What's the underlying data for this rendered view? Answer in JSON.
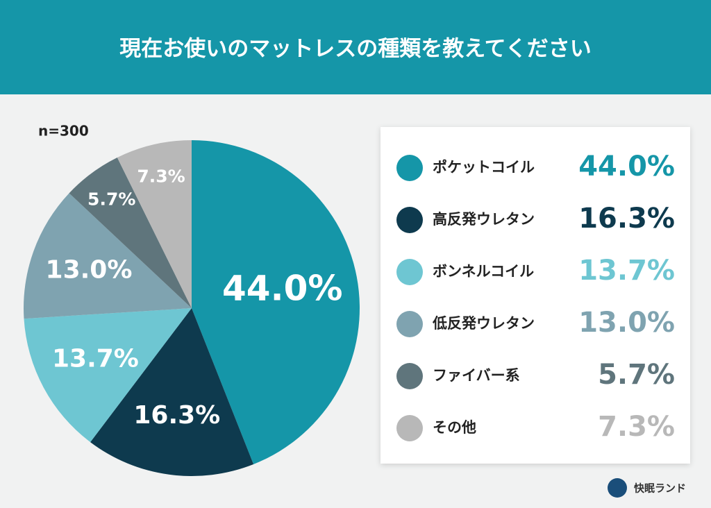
{
  "chart_data": {
    "type": "pie",
    "title": "現在お使いのマットレスの種類を教えてください",
    "subtitle": "n=300",
    "categories": [
      "ポケットコイル",
      "高反発ウレタン",
      "ボンネルコイル",
      "低反発ウレタン",
      "ファイバー系",
      "その他"
    ],
    "values": [
      44.0,
      16.3,
      13.7,
      13.0,
      5.7,
      7.3
    ],
    "value_labels": [
      "44.0%",
      "16.3%",
      "13.7%",
      "13.0%",
      "5.7%",
      "7.3%"
    ],
    "colors": [
      "#1596a8",
      "#0e3a4e",
      "#6ec6d2",
      "#7fa3b0",
      "#5f757c",
      "#b8b8b8"
    ],
    "legend": "right"
  },
  "brand": "快眠ランド"
}
